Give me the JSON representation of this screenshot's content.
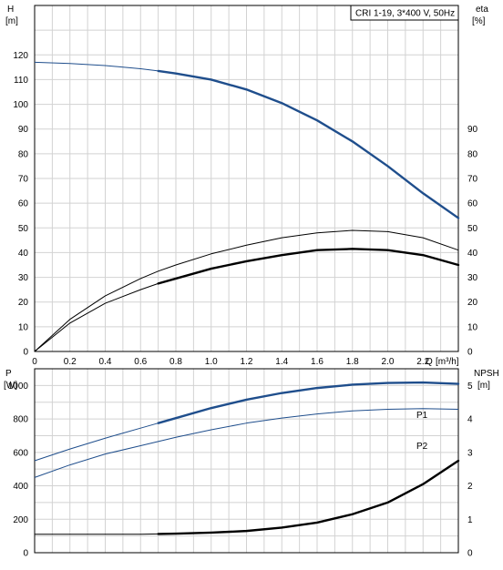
{
  "chart_data": [
    {
      "type": "line",
      "title": "CRI 1-19, 3*400 V, 50Hz",
      "ylabel_left": "H",
      "ylabel_left_unit": "[m]",
      "ylabel_right": "eta",
      "ylabel_right_unit": "[%]",
      "xlabel": "Q",
      "xlabel_unit": "[m³/h]",
      "xlim": [
        0,
        2.4
      ],
      "x_ticks": [
        "0",
        "0.2",
        "0.4",
        "0.6",
        "0.8",
        "1.0",
        "1.2",
        "1.4",
        "1.6",
        "1.8",
        "2.0",
        "2.2"
      ],
      "y_left_lim": [
        0,
        140
      ],
      "y_left_ticks": [
        "0",
        "10",
        "20",
        "30",
        "40",
        "50",
        "60",
        "70",
        "80",
        "90",
        "100",
        "110",
        "120"
      ],
      "y_right_lim": [
        0,
        140
      ],
      "y_right_ticks": [
        "0",
        "10",
        "20",
        "30",
        "40",
        "50",
        "60",
        "70",
        "80",
        "90"
      ],
      "grid": true,
      "series": [
        {
          "color": "#1f4e8c",
          "axis": "left",
          "bold_from": 0.7,
          "x": [
            0,
            0.2,
            0.4,
            0.6,
            0.7,
            0.8,
            1.0,
            1.2,
            1.4,
            1.6,
            1.8,
            2.0,
            2.2,
            2.4
          ],
          "y": [
            117,
            116.5,
            115.7,
            114.4,
            113.5,
            112.5,
            110,
            106,
            100.5,
            93.5,
            85,
            75,
            64,
            54
          ]
        },
        {
          "color": "#000000",
          "axis": "right",
          "bold_from": null,
          "x": [
            0,
            0.2,
            0.4,
            0.6,
            0.7,
            0.8,
            1.0,
            1.2,
            1.4,
            1.6,
            1.8,
            2.0,
            2.2,
            2.4
          ],
          "y": [
            0,
            13,
            22.5,
            29.5,
            32.5,
            35,
            39.5,
            43,
            46,
            48,
            49,
            48.5,
            46,
            41
          ]
        },
        {
          "color": "#000000",
          "axis": "right",
          "bold_from": 0.7,
          "x": [
            0,
            0.2,
            0.4,
            0.6,
            0.7,
            0.8,
            1.0,
            1.2,
            1.4,
            1.6,
            1.8,
            2.0,
            2.2,
            2.4
          ],
          "y": [
            0,
            11.5,
            19.5,
            25,
            27.5,
            29.5,
            33.5,
            36.5,
            39,
            41,
            41.5,
            41,
            39,
            35
          ]
        }
      ]
    },
    {
      "type": "line",
      "ylabel_left": "P",
      "ylabel_left_unit": "[W]",
      "ylabel_right": "NPSH",
      "ylabel_right_unit": "[m]",
      "xlim": [
        0,
        2.4
      ],
      "y_left_lim": [
        0,
        1100
      ],
      "y_left_ticks": [
        "0",
        "200",
        "400",
        "600",
        "800",
        "1000"
      ],
      "y_right_lim": [
        0,
        5.5
      ],
      "y_right_ticks": [
        "0",
        "1",
        "2",
        "3",
        "4",
        "5"
      ],
      "grid": true,
      "series": [
        {
          "name": "P1",
          "color": "#1f4e8c",
          "axis": "left",
          "bold_from": 0.7,
          "x": [
            0,
            0.2,
            0.4,
            0.6,
            0.7,
            0.8,
            1.0,
            1.2,
            1.4,
            1.6,
            1.8,
            2.0,
            2.2,
            2.4
          ],
          "y": [
            550,
            620,
            685,
            745,
            775,
            805,
            865,
            915,
            955,
            985,
            1005,
            1015,
            1018,
            1010
          ]
        },
        {
          "name": "P2",
          "color": "#1f4e8c",
          "axis": "left",
          "bold_from": null,
          "x": [
            0,
            0.2,
            0.4,
            0.6,
            0.7,
            0.8,
            1.0,
            1.2,
            1.4,
            1.6,
            1.8,
            2.0,
            2.2,
            2.4
          ],
          "y": [
            450,
            525,
            590,
            640,
            665,
            690,
            735,
            775,
            805,
            830,
            848,
            858,
            862,
            858
          ]
        },
        {
          "color": "#000000",
          "axis": "right",
          "bold_from": 0.7,
          "x": [
            0,
            0.2,
            0.4,
            0.6,
            0.7,
            0.8,
            1.0,
            1.2,
            1.4,
            1.6,
            1.8,
            2.0,
            2.2,
            2.4
          ],
          "y": [
            0.55,
            0.55,
            0.55,
            0.55,
            0.56,
            0.57,
            0.6,
            0.65,
            0.75,
            0.9,
            1.15,
            1.5,
            2.05,
            2.75
          ]
        }
      ]
    }
  ]
}
